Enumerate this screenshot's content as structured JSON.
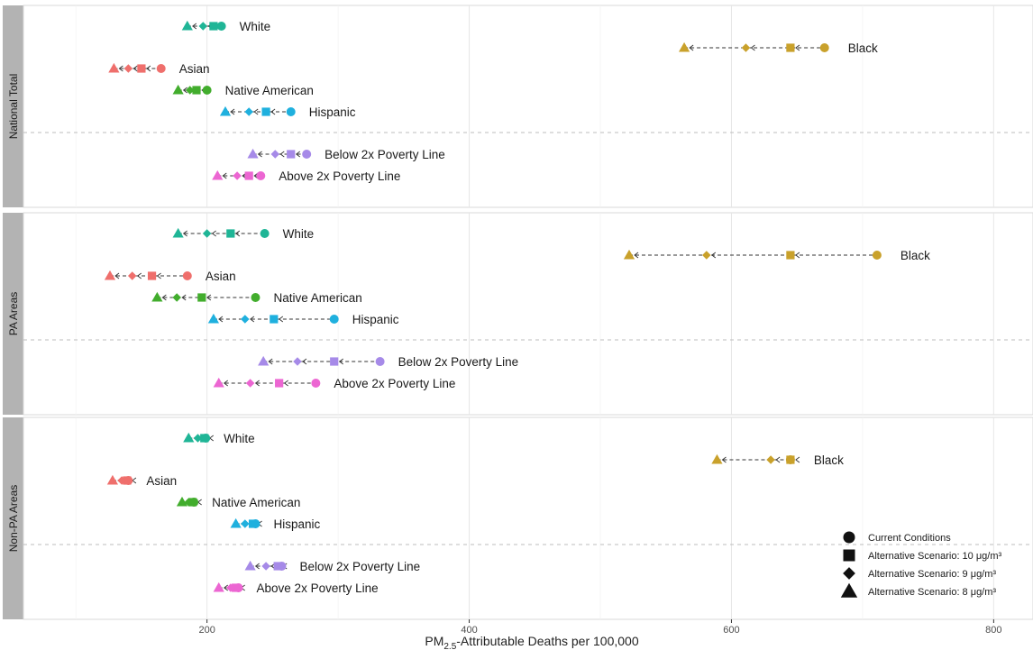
{
  "chart_data": {
    "type": "scatter",
    "xlabel": "PM2.5-Attributable Deaths per 100,000",
    "xlabel_parts": {
      "pre": "PM",
      "sub": "2.5",
      "post": "-Attributable Deaths per 100,000"
    },
    "xlim": [
      60,
      830
    ],
    "xticks": [
      200,
      400,
      600,
      800
    ],
    "grid": true,
    "legend_position": "bottom-right",
    "legend": [
      {
        "shape": "circle",
        "label": "Current Conditions"
      },
      {
        "shape": "square",
        "label": "Alternative Scenario: 10 μg/m³"
      },
      {
        "shape": "diamond",
        "label": "Alternative Scenario: 9 μg/m³"
      },
      {
        "shape": "triangle",
        "label": "Alternative Scenario: 8 μg/m³"
      }
    ],
    "group_colors": {
      "White": "#1fb596",
      "Black": "#c9a12b",
      "Asian": "#ef6f6c",
      "Native American": "#42ad2d",
      "Hispanic": "#1fb0de",
      "Below 2x Poverty Line": "#a68ae8",
      "Above 2x Poverty Line": "#ec66d2"
    },
    "panels": [
      {
        "strip": "National Total",
        "rows": [
          {
            "group": "White",
            "current": 211,
            "s10": 205,
            "s9": 197,
            "s8": 185
          },
          {
            "group": "Black",
            "current": 671,
            "s10": 645,
            "s9": 611,
            "s8": 564
          },
          {
            "group": "Asian",
            "current": 165,
            "s10": 150,
            "s9": 140,
            "s8": 129
          },
          {
            "group": "Native American",
            "current": 200,
            "s10": 192,
            "s9": 187,
            "s8": 178
          },
          {
            "group": "Hispanic",
            "current": 264,
            "s10": 245,
            "s9": 232,
            "s8": 214
          },
          {
            "group": "Below 2x Poverty Line",
            "current": 276,
            "s10": 264,
            "s9": 252,
            "s8": 235
          },
          {
            "group": "Above 2x Poverty Line",
            "current": 241,
            "s10": 232,
            "s9": 223,
            "s8": 208
          }
        ]
      },
      {
        "strip": "PA Areas",
        "rows": [
          {
            "group": "White",
            "current": 244,
            "s10": 218,
            "s9": 200,
            "s8": 178
          },
          {
            "group": "Black",
            "current": 711,
            "s10": 645,
            "s9": 581,
            "s8": 522
          },
          {
            "group": "Asian",
            "current": 185,
            "s10": 158,
            "s9": 143,
            "s8": 126
          },
          {
            "group": "Native American",
            "current": 237,
            "s10": 196,
            "s9": 177,
            "s8": 162
          },
          {
            "group": "Hispanic",
            "current": 297,
            "s10": 251,
            "s9": 229,
            "s8": 205
          },
          {
            "group": "Below 2x Poverty Line",
            "current": 332,
            "s10": 297,
            "s9": 269,
            "s8": 243
          },
          {
            "group": "Above 2x Poverty Line",
            "current": 283,
            "s10": 255,
            "s9": 233,
            "s8": 209
          }
        ]
      },
      {
        "strip": "Non-PA Areas",
        "rows": [
          {
            "group": "White",
            "current": 199,
            "s10": 198,
            "s9": 193,
            "s8": 186
          },
          {
            "group": "Black",
            "current": 645,
            "s10": 645,
            "s9": 630,
            "s8": 589
          },
          {
            "group": "Asian",
            "current": 140,
            "s10": 139,
            "s9": 135,
            "s8": 128
          },
          {
            "group": "Native American",
            "current": 190,
            "s10": 189,
            "s9": 186,
            "s8": 181
          },
          {
            "group": "Hispanic",
            "current": 237,
            "s10": 235,
            "s9": 229,
            "s8": 222
          },
          {
            "group": "Below 2x Poverty Line",
            "current": 257,
            "s10": 254,
            "s9": 245,
            "s8": 233
          },
          {
            "group": "Above 2x Poverty Line",
            "current": 224,
            "s10": 222,
            "s9": 218,
            "s8": 209
          }
        ]
      }
    ]
  }
}
